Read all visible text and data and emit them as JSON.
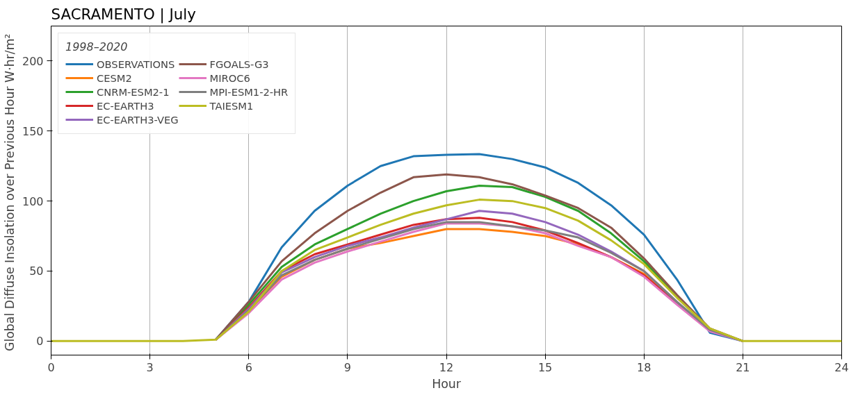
{
  "chart_data": {
    "type": "line",
    "title": "SACRAMENTO | July",
    "xlabel": "Hour",
    "ylabel": "Global Diffuse Insolation over Previous Hour  W·hr/m²",
    "legend_title": "1998–2020",
    "legend": "top left",
    "grid": "x",
    "line_style": "solid",
    "marker": "none",
    "x": [
      0,
      1,
      2,
      3,
      4,
      5,
      6,
      7,
      8,
      9,
      10,
      11,
      12,
      13,
      14,
      15,
      16,
      17,
      18,
      19,
      20,
      21,
      22,
      23,
      24
    ],
    "xlim": [
      0,
      24
    ],
    "xticks": [
      0,
      3,
      6,
      9,
      12,
      15,
      18,
      21,
      24
    ],
    "ylim": [
      -10,
      225
    ],
    "yticks": [
      0,
      50,
      100,
      150,
      200
    ],
    "series": [
      {
        "name": "OBSERVATIONS",
        "color": "#1f77b4",
        "values": [
          null,
          null,
          null,
          null,
          null,
          1,
          28,
          67,
          93,
          111,
          125,
          132,
          133,
          133.5,
          130,
          124,
          113,
          97,
          76,
          44,
          6,
          0,
          null,
          null,
          null
        ]
      },
      {
        "name": "CESM2",
        "color": "#ff7f0e",
        "values": [
          null,
          null,
          null,
          null,
          null,
          1,
          22,
          46,
          58,
          66,
          70,
          75,
          80,
          80,
          78,
          75,
          69,
          60,
          48,
          27,
          null,
          null,
          null,
          null,
          null
        ]
      },
      {
        "name": "CNRM-ESM2-1",
        "color": "#2ca02c",
        "values": [
          null,
          null,
          null,
          null,
          null,
          1,
          26,
          53,
          69,
          80,
          91,
          100,
          107,
          111,
          110,
          103,
          93,
          77,
          57,
          32,
          8,
          0,
          null,
          null,
          null
        ]
      },
      {
        "name": "EC-EARTH3",
        "color": "#d62728",
        "values": [
          null,
          null,
          null,
          null,
          null,
          1,
          24,
          50,
          62,
          69,
          76,
          83,
          87,
          88,
          85,
          79,
          70,
          60,
          47,
          27,
          8,
          0,
          null,
          null,
          null
        ]
      },
      {
        "name": "EC-EARTH3-VEG",
        "color": "#9467bd",
        "values": [
          null,
          null,
          null,
          null,
          null,
          1,
          23,
          49,
          60,
          68,
          74,
          81,
          87,
          93,
          91,
          85,
          76,
          64,
          50,
          28,
          8,
          0,
          null,
          null,
          null
        ]
      },
      {
        "name": "FGOALS-G3",
        "color": "#8c564b",
        "values": [
          null,
          null,
          null,
          null,
          null,
          1,
          28,
          57,
          77,
          93,
          106,
          117,
          119,
          117,
          112,
          104,
          95,
          81,
          59,
          33,
          9,
          0,
          null,
          null,
          null
        ]
      },
      {
        "name": "MIROC6",
        "color": "#e377c2",
        "values": [
          null,
          null,
          null,
          null,
          null,
          1,
          20,
          44,
          56,
          64,
          71,
          78,
          84,
          84,
          82,
          77,
          68,
          60,
          46,
          26,
          7,
          0,
          null,
          null,
          null
        ]
      },
      {
        "name": "MPI-ESM1-2-HR",
        "color": "#7f7f7f",
        "values": [
          null,
          null,
          null,
          null,
          null,
          1,
          22,
          47,
          58,
          66,
          73,
          80,
          85,
          85,
          82,
          79,
          74,
          63,
          50,
          28,
          8,
          0,
          null,
          null,
          null
        ]
      },
      {
        "name": "TAIESM1",
        "color": "#bcbd22",
        "values": [
          0,
          0,
          0,
          0,
          0,
          1,
          21,
          50,
          65,
          74,
          83,
          91,
          97,
          101,
          100,
          95,
          86,
          72,
          55,
          31,
          9,
          0,
          0,
          0,
          0
        ]
      }
    ]
  }
}
